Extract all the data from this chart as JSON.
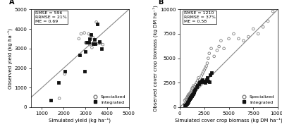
{
  "panel_A": {
    "title": "A",
    "xlabel": "Simulated yield (kg ha⁻¹)",
    "ylabel": "Observed yield (kg ha⁻¹)",
    "xlim": [
      500,
      5000
    ],
    "ylim": [
      0,
      5000
    ],
    "xticks": [
      1000,
      2000,
      3000,
      4000,
      5000
    ],
    "yticks": [
      0,
      1000,
      2000,
      3000,
      4000,
      5000
    ],
    "stats_text": "RMSE = 596\nRRMSE = 21%\nME = 0.69",
    "line_start": 0,
    "line_end": 5000,
    "specialized_x": [
      1800,
      2050,
      2700,
      2800,
      2950,
      3000,
      3050,
      3100,
      3150,
      3200,
      3250,
      3300,
      3350,
      3500,
      3600,
      3700,
      3800
    ],
    "specialized_y": [
      450,
      1700,
      3500,
      3750,
      3800,
      3300,
      3300,
      3300,
      3750,
      3200,
      3700,
      3050,
      3550,
      4350,
      3250,
      3250,
      3200
    ],
    "integrated_x": [
      1400,
      1750,
      2050,
      2750,
      2950,
      3000,
      3050,
      3150,
      3200,
      3250,
      3350,
      3400,
      3450,
      3550,
      3650,
      3750
    ],
    "integrated_y": [
      350,
      1250,
      1850,
      2650,
      1850,
      2850,
      3300,
      3300,
      3500,
      3700,
      3250,
      3450,
      3250,
      4250,
      3350,
      3000
    ]
  },
  "panel_B": {
    "title": "B",
    "xlabel": "Simulated cover crop biomass (kg DM ha⁻¹)",
    "ylabel": "Observed cover crop biomass (kg DM ha⁻¹)",
    "xlim": [
      0,
      10000
    ],
    "ylim": [
      0,
      10000
    ],
    "xticks": [
      0,
      2500,
      5000,
      7500,
      10000
    ],
    "yticks": [
      0,
      2500,
      5000,
      7500,
      10000
    ],
    "stats_text": "RMSE = 1210\nRRMSE = 37%\nME = 0.58",
    "line_start": 0,
    "line_end": 10000,
    "specialized_x": [
      500,
      600,
      700,
      750,
      800,
      850,
      900,
      950,
      1000,
      1050,
      1100,
      1150,
      1200,
      1250,
      1300,
      1400,
      1500,
      1600,
      1700,
      1800,
      1900,
      2000,
      2100,
      2200,
      2300,
      2400,
      2500,
      2600,
      2700,
      2800,
      2900,
      3000,
      3200,
      3500,
      3800,
      4000,
      4200,
      4500,
      5000,
      5500,
      6000,
      6500,
      7000,
      7500,
      8000,
      8500,
      9000,
      9500
    ],
    "specialized_y": [
      700,
      800,
      900,
      1000,
      1100,
      1200,
      1300,
      1100,
      1400,
      1200,
      1500,
      1600,
      1700,
      1900,
      2000,
      2200,
      2100,
      2300,
      2500,
      2700,
      3000,
      2800,
      2600,
      3200,
      3400,
      3600,
      3800,
      4000,
      4200,
      4500,
      5000,
      5500,
      6000,
      5200,
      5800,
      6200,
      6800,
      6000,
      7000,
      7500,
      7000,
      6800,
      7200,
      8000,
      7500,
      8200,
      8800,
      9800
    ],
    "integrated_x": [
      500,
      600,
      650,
      700,
      750,
      800,
      850,
      900,
      950,
      1000,
      1050,
      1100,
      1150,
      1200,
      1250,
      1300,
      1350,
      1400,
      1450,
      1500,
      1600,
      1700,
      1800,
      1900,
      2000,
      2100,
      2200,
      2300,
      2400,
      2500,
      2600,
      2700,
      2800,
      2900,
      3000,
      3100,
      3200
    ],
    "integrated_y": [
      200,
      250,
      300,
      350,
      400,
      500,
      600,
      700,
      800,
      900,
      950,
      1000,
      1100,
      1150,
      1200,
      1300,
      1400,
      1500,
      1600,
      1700,
      1900,
      2100,
      2200,
      2400,
      2500,
      2600,
      2700,
      2800,
      2600,
      2700,
      2500,
      2800,
      3000,
      2700,
      2600,
      3300,
      3500
    ]
  },
  "colors": {
    "specialized": "#808080",
    "integrated": "#111111"
  },
  "fig_width": 4.0,
  "fig_height": 1.9,
  "dpi": 100
}
